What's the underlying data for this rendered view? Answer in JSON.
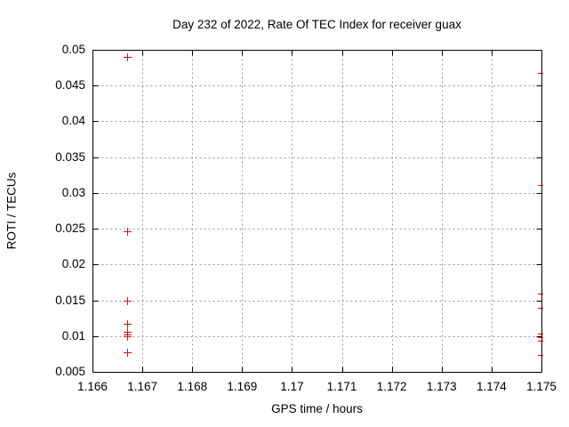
{
  "chart_data": {
    "type": "scatter",
    "title": "Day 232 of 2022, Rate Of TEC Index for receiver guax",
    "xlabel": "GPS time / hours",
    "ylabel": "ROTI / TECUs",
    "xlim": [
      1.166,
      1.175
    ],
    "ylim": [
      0.005,
      0.05
    ],
    "xticks": [
      {
        "value": 1.166,
        "label": "1.166"
      },
      {
        "value": 1.167,
        "label": "1.167"
      },
      {
        "value": 1.168,
        "label": "1.168"
      },
      {
        "value": 1.169,
        "label": "1.169"
      },
      {
        "value": 1.17,
        "label": "1.17"
      },
      {
        "value": 1.171,
        "label": "1.171"
      },
      {
        "value": 1.172,
        "label": "1.172"
      },
      {
        "value": 1.173,
        "label": "1.173"
      },
      {
        "value": 1.174,
        "label": "1.174"
      },
      {
        "value": 1.175,
        "label": "1.175"
      }
    ],
    "yticks": [
      {
        "value": 0.005,
        "label": "0.005"
      },
      {
        "value": 0.01,
        "label": "0.01"
      },
      {
        "value": 0.015,
        "label": "0.015"
      },
      {
        "value": 0.02,
        "label": "0.02"
      },
      {
        "value": 0.025,
        "label": "0.025"
      },
      {
        "value": 0.03,
        "label": "0.03"
      },
      {
        "value": 0.035,
        "label": "0.035"
      },
      {
        "value": 0.04,
        "label": "0.04"
      },
      {
        "value": 0.045,
        "label": "0.045"
      },
      {
        "value": 0.05,
        "label": "0.05"
      }
    ],
    "grid": true,
    "legend_position": "none",
    "marker": "plus",
    "marker_size_px": 9,
    "series": [
      {
        "name": "ROTI",
        "color": "#ff0000",
        "points": [
          [
            1.1667,
            0.049
          ],
          [
            1.1667,
            0.0247
          ],
          [
            1.1667,
            0.015
          ],
          [
            1.1667,
            0.0117
          ],
          [
            1.1667,
            0.0106
          ],
          [
            1.1667,
            0.0102
          ],
          [
            1.1667,
            0.01
          ],
          [
            1.1667,
            0.0077
          ],
          [
            1.175,
            0.0468
          ],
          [
            1.175,
            0.0311
          ],
          [
            1.175,
            0.0159
          ],
          [
            1.175,
            0.0139
          ],
          [
            1.175,
            0.0104
          ],
          [
            1.175,
            0.0099
          ],
          [
            1.175,
            0.0093
          ],
          [
            1.175,
            0.0074
          ]
        ]
      }
    ]
  },
  "colors": {
    "background": "#ffffff",
    "axis": "#000000",
    "grid": "#999999",
    "marker": "#ff0000",
    "text": "#000000"
  }
}
